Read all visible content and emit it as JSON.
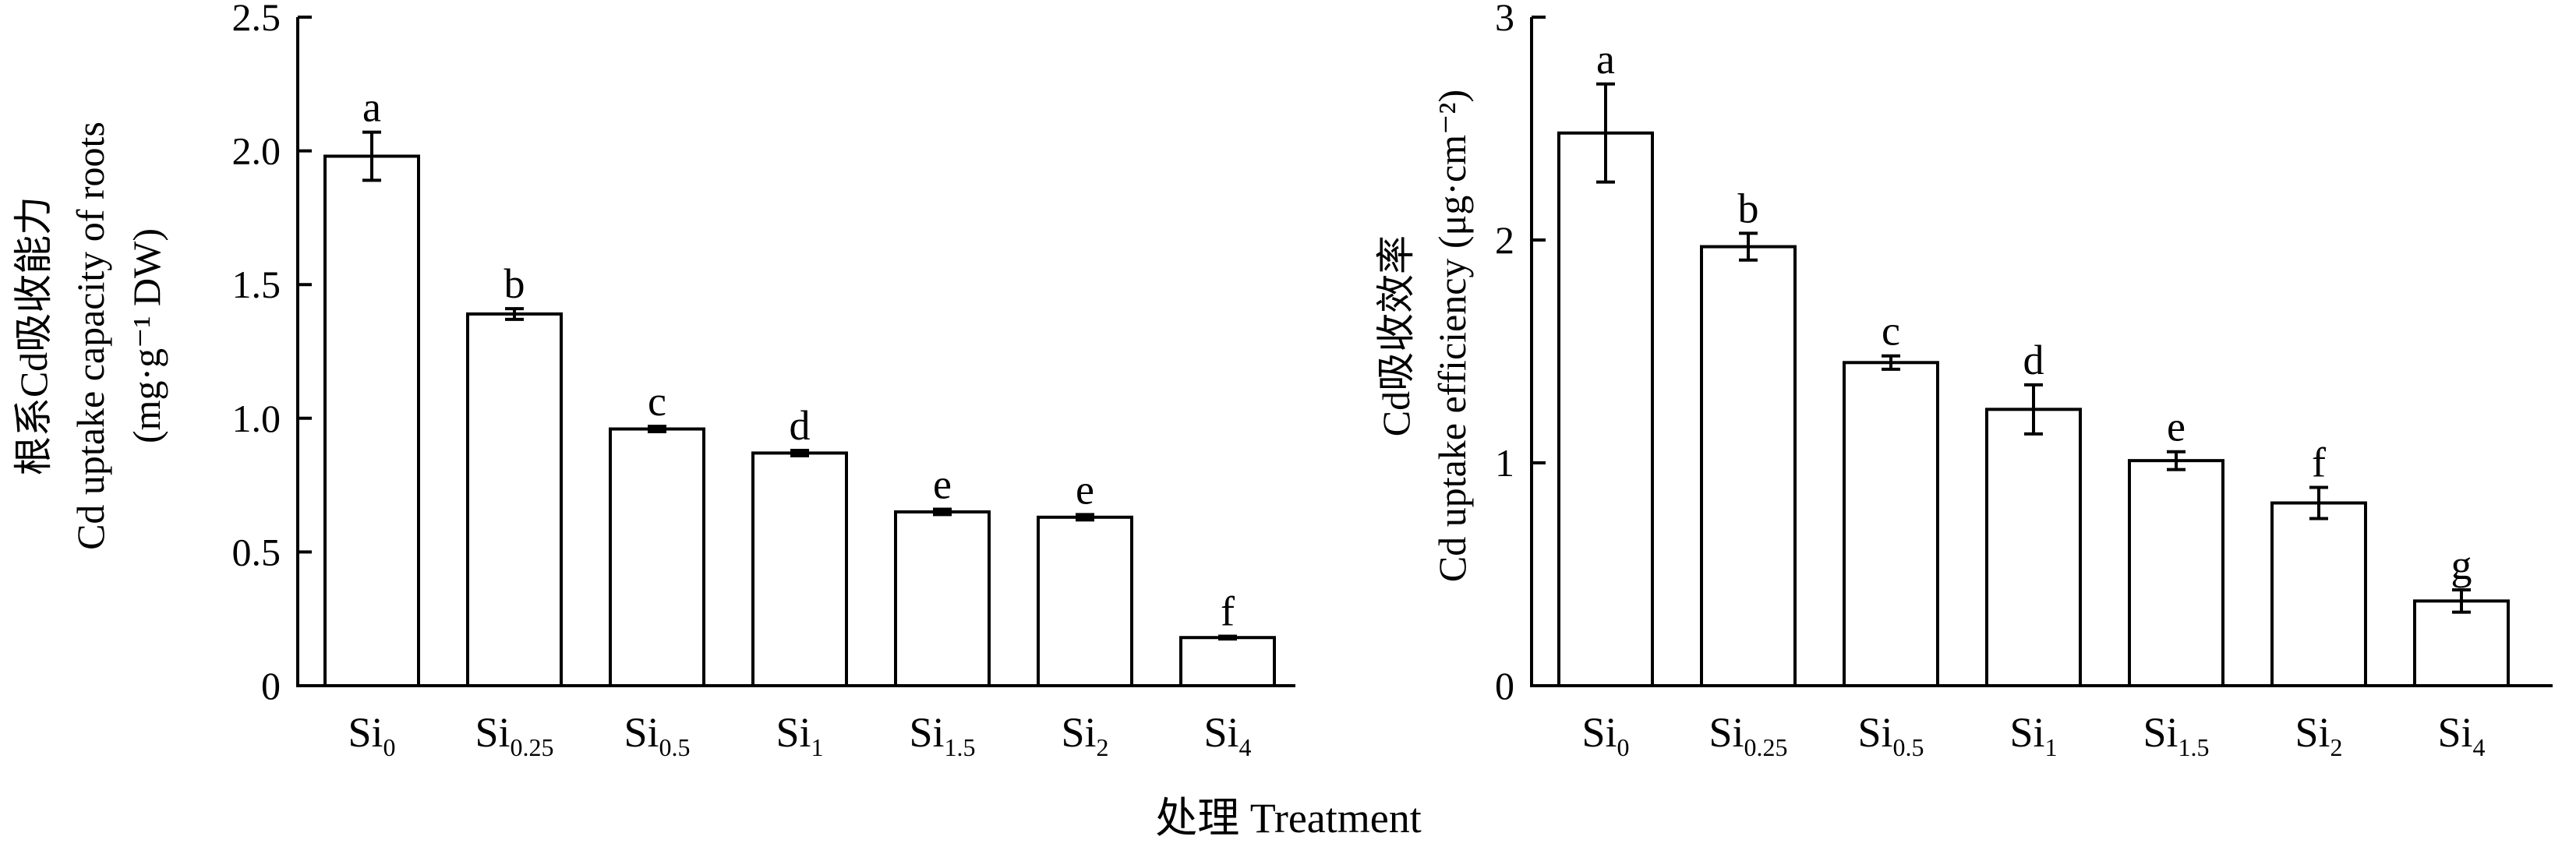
{
  "chart_data": [
    {
      "type": "bar",
      "title": "",
      "ylabel_lines": [
        "根系Cd吸收能力",
        "Cd uptake capacity of roots",
        "(mg·g⁻¹ DW)"
      ],
      "ylim": [
        0,
        2.5
      ],
      "yticks": [
        "0",
        "0.5",
        "1.0",
        "1.5",
        "2.0",
        "2.5"
      ],
      "categories": [
        {
          "base": "Si",
          "sub": "0"
        },
        {
          "base": "Si",
          "sub": "0.25"
        },
        {
          "base": "Si",
          "sub": "0.5"
        },
        {
          "base": "Si",
          "sub": "1"
        },
        {
          "base": "Si",
          "sub": "1.5"
        },
        {
          "base": "Si",
          "sub": "2"
        },
        {
          "base": "Si",
          "sub": "4"
        }
      ],
      "values": [
        1.98,
        1.39,
        0.96,
        0.87,
        0.65,
        0.63,
        0.18
      ],
      "errors": [
        0.09,
        0.02,
        0.01,
        0.01,
        0.01,
        0.01,
        0.005
      ],
      "significance": [
        "a",
        "b",
        "c",
        "d",
        "e",
        "e",
        "f"
      ]
    },
    {
      "type": "bar",
      "title": "",
      "ylabel_lines": [
        "Cd吸收效率",
        "Cd uptake efficiency (μg·cm⁻²)"
      ],
      "ylim": [
        0,
        3
      ],
      "yticks": [
        "0",
        "1",
        "2",
        "3"
      ],
      "categories": [
        {
          "base": "Si",
          "sub": "0"
        },
        {
          "base": "Si",
          "sub": "0.25"
        },
        {
          "base": "Si",
          "sub": "0.5"
        },
        {
          "base": "Si",
          "sub": "1"
        },
        {
          "base": "Si",
          "sub": "1.5"
        },
        {
          "base": "Si",
          "sub": "2"
        },
        {
          "base": "Si",
          "sub": "4"
        }
      ],
      "values": [
        2.48,
        1.97,
        1.45,
        1.24,
        1.01,
        0.82,
        0.38
      ],
      "errors": [
        0.22,
        0.06,
        0.03,
        0.11,
        0.04,
        0.07,
        0.05
      ],
      "significance": [
        "a",
        "b",
        "c",
        "d",
        "e",
        "f",
        "g"
      ]
    }
  ],
  "xlabel": "处理 Treatment"
}
